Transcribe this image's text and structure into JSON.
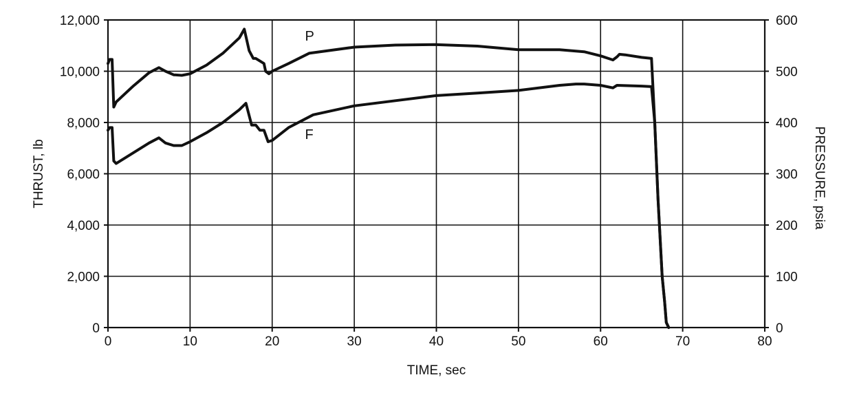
{
  "chart_data": {
    "type": "line",
    "xlabel": "TIME, sec",
    "ylabel": "THRUST, lb",
    "y2label": "PRESSURE, psia",
    "xlim": [
      0,
      80
    ],
    "ylim": [
      0,
      12000
    ],
    "y2lim": [
      0,
      600
    ],
    "x_ticks": [
      "0",
      "10",
      "20",
      "30",
      "40",
      "50",
      "60",
      "70",
      "80"
    ],
    "y_ticks": [
      "0",
      "2,000",
      "4,000",
      "6,000",
      "8,000",
      "10,000",
      "12,000"
    ],
    "y2_ticks": [
      "0",
      "100",
      "200",
      "300",
      "400",
      "500",
      "600"
    ],
    "grid": true,
    "series": [
      {
        "name": "P",
        "axis": "right",
        "x": [
          0,
          0.2,
          0.5,
          0.7,
          1,
          3,
          5,
          6.2,
          7,
          8,
          9,
          10,
          12,
          14,
          16,
          16.6,
          17.2,
          17.7,
          18,
          18.5,
          19,
          19.2,
          19.6,
          20,
          22,
          24.5,
          30,
          35,
          40,
          45,
          50,
          55,
          58,
          60,
          61.5,
          62,
          62.3,
          63,
          65,
          66.2,
          66.6,
          67,
          67.5,
          67.8,
          68,
          68.3
        ],
        "y": [
          515,
          523,
          523,
          430,
          440,
          470,
          497,
          507,
          500,
          493,
          492,
          495,
          512,
          535,
          565,
          582,
          540,
          525,
          525,
          520,
          515,
          500,
          495,
          500,
          515,
          535,
          547,
          551,
          552,
          549,
          542,
          542,
          538,
          530,
          522,
          528,
          533,
          532,
          527,
          525,
          400,
          250,
          100,
          50,
          10,
          0
        ]
      },
      {
        "name": "F",
        "axis": "left",
        "x": [
          0,
          0.2,
          0.5,
          0.7,
          1,
          3,
          5,
          6.2,
          7,
          8,
          9,
          10,
          12,
          14,
          16,
          16.8,
          17.5,
          18,
          18.5,
          19,
          19.5,
          20,
          22,
          25,
          30,
          35,
          40,
          45,
          50,
          55,
          57,
          58,
          60,
          61.5,
          62,
          65,
          66.2,
          66.6,
          67,
          67.5,
          67.8,
          68,
          68.3
        ],
        "y": [
          7700,
          7800,
          7800,
          6500,
          6400,
          6800,
          7200,
          7400,
          7200,
          7100,
          7100,
          7250,
          7600,
          8000,
          8500,
          8750,
          7900,
          7900,
          7700,
          7700,
          7250,
          7300,
          7800,
          8300,
          8650,
          8850,
          9050,
          9150,
          9250,
          9450,
          9500,
          9500,
          9450,
          9350,
          9450,
          9420,
          9400,
          8000,
          5000,
          2000,
          1000,
          200,
          0
        ]
      }
    ]
  }
}
